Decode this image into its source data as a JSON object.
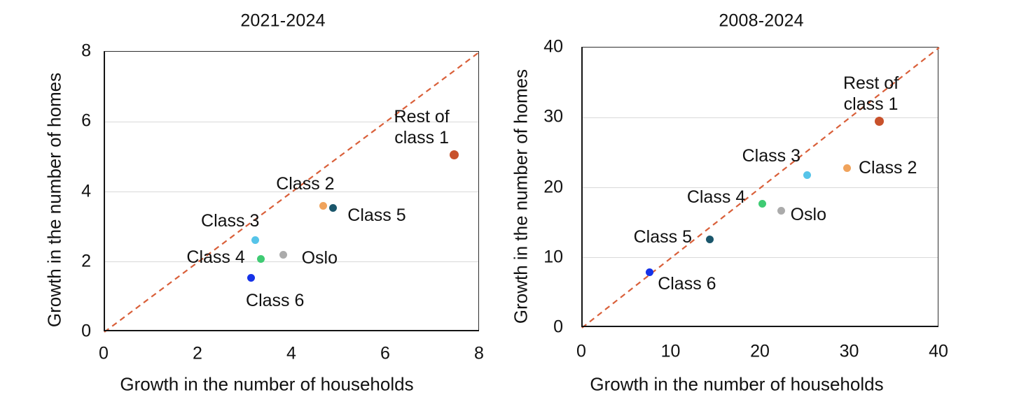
{
  "style": {
    "background": "#ffffff",
    "text_color": "#111111",
    "grid_color": "#d9d9d9",
    "border_color": "#2e2e2e",
    "axis_color": "#141414",
    "diagonal_color": "#d95f39"
  },
  "chart_data": [
    {
      "type": "scatter",
      "title": "2021-2024",
      "xlabel": "Growth in the number of households",
      "ylabel": "Growth in the number of homes",
      "xlim": [
        0,
        8
      ],
      "ylim": [
        0,
        8
      ],
      "xticks": [
        0,
        2,
        4,
        6,
        8
      ],
      "yticks": [
        0,
        2,
        4,
        6,
        8
      ],
      "grid": "horizontal-only",
      "reference_line": {
        "type": "diagonal y=x",
        "style": "dashed"
      },
      "points": [
        {
          "name": "Rest of class 1",
          "label_lines": [
            "Rest of",
            "class 1"
          ],
          "x": 7.45,
          "y": 5.05,
          "color": "#c8512b",
          "size": 13,
          "label_offset": [
            -46,
            -40
          ]
        },
        {
          "name": "Class 2",
          "label_lines": [
            "Class 2"
          ],
          "x": 4.67,
          "y": 3.6,
          "color": "#f0a35c",
          "size": 11,
          "label_offset": [
            -26,
            -32
          ]
        },
        {
          "name": "Class 3",
          "label_lines": [
            "Class 3"
          ],
          "x": 3.22,
          "y": 2.63,
          "color": "#56c4e9",
          "size": 11,
          "label_offset": [
            -36,
            -27
          ]
        },
        {
          "name": "Class 4",
          "label_lines": [
            "Class 4"
          ],
          "x": 3.33,
          "y": 2.09,
          "color": "#3fcb73",
          "size": 11,
          "label_offset": [
            -64,
            -2
          ]
        },
        {
          "name": "Oslo",
          "label_lines": [
            "Oslo"
          ],
          "x": 3.81,
          "y": 2.2,
          "color": "#ababab",
          "size": 11,
          "label_offset": [
            52,
            4
          ]
        },
        {
          "name": "Class 5",
          "label_lines": [
            "Class 5"
          ],
          "x": 4.88,
          "y": 3.54,
          "color": "#1a566b",
          "size": 11,
          "label_offset": [
            62,
            10
          ]
        },
        {
          "name": "Class 6",
          "label_lines": [
            "Class 6"
          ],
          "x": 3.13,
          "y": 1.55,
          "color": "#1532e8",
          "size": 11,
          "label_offset": [
            34,
            33
          ]
        }
      ]
    },
    {
      "type": "scatter",
      "title": "2008-2024",
      "xlabel": "Growth in the number of households",
      "ylabel": "Growth in the number of homes",
      "xlim": [
        0,
        40
      ],
      "ylim": [
        0,
        40
      ],
      "xticks": [
        0,
        10,
        20,
        30,
        40
      ],
      "yticks": [
        0,
        10,
        20,
        30,
        40
      ],
      "grid": "horizontal-only",
      "reference_line": {
        "type": "diagonal y=x",
        "style": "dashed"
      },
      "points": [
        {
          "name": "Rest of class 1",
          "label_lines": [
            "Rest of",
            "class 1"
          ],
          "x": 33.3,
          "y": 29.5,
          "color": "#c8512b",
          "size": 13,
          "label_offset": [
            -12,
            -39
          ]
        },
        {
          "name": "Class 2",
          "label_lines": [
            "Class 2"
          ],
          "x": 29.7,
          "y": 22.8,
          "color": "#f0a35c",
          "size": 11,
          "label_offset": [
            58,
            0
          ]
        },
        {
          "name": "Class 3",
          "label_lines": [
            "Class 3"
          ],
          "x": 25.2,
          "y": 21.8,
          "color": "#56c4e9",
          "size": 11,
          "label_offset": [
            -51,
            -27
          ]
        },
        {
          "name": "Class 4",
          "label_lines": [
            "Class 4"
          ],
          "x": 20.2,
          "y": 17.7,
          "color": "#3fcb73",
          "size": 11,
          "label_offset": [
            -66,
            -10
          ]
        },
        {
          "name": "Oslo",
          "label_lines": [
            "Oslo"
          ],
          "x": 22.3,
          "y": 16.7,
          "color": "#ababab",
          "size": 11,
          "label_offset": [
            39,
            5
          ]
        },
        {
          "name": "Class 5",
          "label_lines": [
            "Class 5"
          ],
          "x": 14.3,
          "y": 12.6,
          "color": "#1a566b",
          "size": 11,
          "label_offset": [
            -67,
            -4
          ]
        },
        {
          "name": "Class 6",
          "label_lines": [
            "Class 6"
          ],
          "x": 7.6,
          "y": 7.9,
          "color": "#1532e8",
          "size": 11,
          "label_offset": [
            53,
            16
          ]
        }
      ]
    }
  ]
}
